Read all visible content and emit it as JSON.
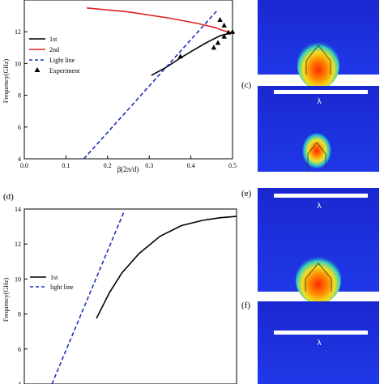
{
  "chart_data": [
    {
      "type": "line",
      "panel": "",
      "xlabel": "β(2π/d)",
      "ylabel": "Frequency(GHz)",
      "xlim": [
        0.0,
        0.5
      ],
      "ylim": [
        4,
        14
      ],
      "xticks": [
        0.0,
        0.1,
        0.2,
        0.3,
        0.4,
        0.5
      ],
      "yticks": [
        4,
        6,
        8,
        10,
        12
      ],
      "legend": "center-right",
      "series": [
        {
          "name": "1st",
          "color": "#000000",
          "style": "solid",
          "x": [
            0.305,
            0.34,
            0.375,
            0.41,
            0.44,
            0.47,
            0.5
          ],
          "y": [
            9.25,
            9.75,
            10.35,
            10.9,
            11.35,
            11.75,
            11.95
          ]
        },
        {
          "name": "2nd",
          "color": "#dd2222",
          "style": "solid",
          "x": [
            0.15,
            0.25,
            0.35,
            0.42,
            0.46,
            0.48,
            0.5
          ],
          "y": [
            13.5,
            13.25,
            12.85,
            12.5,
            12.25,
            12.05,
            11.95
          ]
        },
        {
          "name": "Light line",
          "color": "#1f2fbf",
          "style": "dashed",
          "x": [
            0.143,
            0.465
          ],
          "y": [
            4.0,
            13.4
          ]
        },
        {
          "name": "Experiment",
          "color": "#000000",
          "style": "triangles",
          "x": [
            0.375,
            0.455,
            0.465,
            0.48,
            0.49,
            0.48,
            0.47,
            0.5
          ],
          "y": [
            10.45,
            11.0,
            11.3,
            11.7,
            11.95,
            12.4,
            12.75,
            12.0
          ]
        }
      ]
    },
    {
      "type": "line",
      "panel": "(d)",
      "xlabel": "",
      "ylabel": "Frequency(GHz)",
      "xlim": [
        0.0,
        0.5
      ],
      "ylim": [
        4,
        14
      ],
      "yticks": [
        4,
        6,
        8,
        10,
        12,
        14
      ],
      "legend": "center-right",
      "series": [
        {
          "name": "1st",
          "color": "#000000",
          "style": "solid",
          "x": [
            0.17,
            0.2,
            0.23,
            0.27,
            0.32,
            0.37,
            0.42,
            0.46,
            0.5
          ],
          "y": [
            7.75,
            9.2,
            10.35,
            11.45,
            12.45,
            13.05,
            13.35,
            13.5,
            13.58
          ]
        },
        {
          "name": "light line",
          "color": "#1f2fbf",
          "style": "dashed",
          "x": [
            0.065,
            0.235
          ],
          "y": [
            4.0,
            13.85
          ]
        }
      ]
    }
  ],
  "panels": {
    "c": "(c)",
    "e": "(e)",
    "f": "(f)"
  },
  "scale_label": "λ",
  "colors": {
    "field_background": "#1b2bd8",
    "field_hot": "#ff3a00",
    "scale_bar": "#ffffff"
  }
}
